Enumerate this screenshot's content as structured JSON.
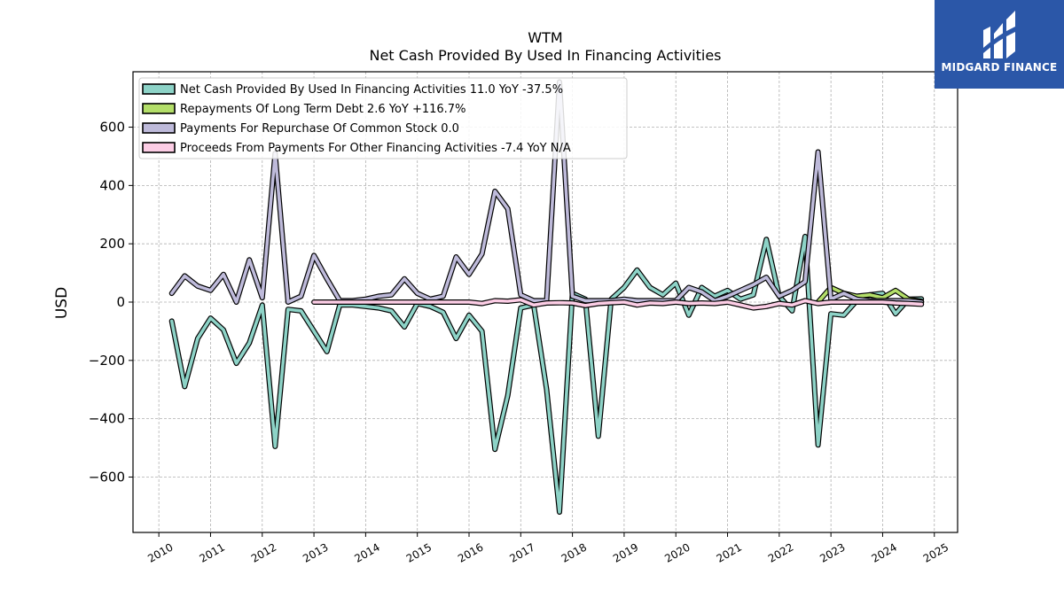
{
  "brand": {
    "name": "MIDGARD FINANCE",
    "logo_color": "#2b57a8",
    "icon": "midgard-logo-mark"
  },
  "chart_data": {
    "type": "line",
    "title": "WTM",
    "subtitle": "Net Cash Provided By Used In Financing Activities",
    "xlabel": "",
    "ylabel": "USD",
    "xlim": [
      2009.5,
      2025.45
    ],
    "ylim": [
      -790,
      790
    ],
    "x_ticks": [
      2010,
      2011,
      2012,
      2013,
      2014,
      2015,
      2016,
      2017,
      2018,
      2019,
      2020,
      2021,
      2022,
      2023,
      2024,
      2025
    ],
    "y_ticks": [
      -600,
      -400,
      -200,
      0,
      200,
      400,
      600
    ],
    "y_tick_labels": [
      "−600",
      "−400",
      "−200",
      "0",
      "200",
      "400",
      "600"
    ],
    "grid": true,
    "legend_position": "top-left",
    "series": [
      {
        "name": "Net Cash Provided By Used In Financing Activities",
        "legend_label": "Net Cash Provided By Used In Financing Activities  11.0 YoY -37.5%",
        "color": "#8dd3c7",
        "points": [
          [
            2010.25,
            -65
          ],
          [
            2010.5,
            -290
          ],
          [
            2010.75,
            -125
          ],
          [
            2011.0,
            -55
          ],
          [
            2011.25,
            -95
          ],
          [
            2011.5,
            -210
          ],
          [
            2011.75,
            -140
          ],
          [
            2012.0,
            -10
          ],
          [
            2012.25,
            -495
          ],
          [
            2012.5,
            -25
          ],
          [
            2012.75,
            -30
          ],
          [
            2013.0,
            -100
          ],
          [
            2013.25,
            -170
          ],
          [
            2013.5,
            -10
          ],
          [
            2013.75,
            -10
          ],
          [
            2014.0,
            -15
          ],
          [
            2014.25,
            -20
          ],
          [
            2014.5,
            -30
          ],
          [
            2014.75,
            -85
          ],
          [
            2015.0,
            -5
          ],
          [
            2015.25,
            -15
          ],
          [
            2015.5,
            -35
          ],
          [
            2015.75,
            -125
          ],
          [
            2016.0,
            -45
          ],
          [
            2016.25,
            -100
          ],
          [
            2016.5,
            -505
          ],
          [
            2016.75,
            -320
          ],
          [
            2017.0,
            -20
          ],
          [
            2017.25,
            -10
          ],
          [
            2017.5,
            -300
          ],
          [
            2017.75,
            -720
          ],
          [
            2018.0,
            30
          ],
          [
            2018.25,
            10
          ],
          [
            2018.5,
            -460
          ],
          [
            2018.75,
            10
          ],
          [
            2019.0,
            50
          ],
          [
            2019.25,
            110
          ],
          [
            2019.5,
            50
          ],
          [
            2019.75,
            25
          ],
          [
            2020.0,
            65
          ],
          [
            2020.25,
            -45
          ],
          [
            2020.5,
            50
          ],
          [
            2020.75,
            20
          ],
          [
            2021.0,
            40
          ],
          [
            2021.25,
            10
          ],
          [
            2021.5,
            25
          ],
          [
            2021.75,
            215
          ],
          [
            2022.0,
            20
          ],
          [
            2022.25,
            -30
          ],
          [
            2022.5,
            225
          ],
          [
            2022.75,
            -490
          ],
          [
            2023.0,
            -40
          ],
          [
            2023.25,
            -45
          ],
          [
            2023.5,
            5
          ],
          [
            2023.75,
            25
          ],
          [
            2024.0,
            30
          ],
          [
            2024.25,
            -40
          ],
          [
            2024.5,
            10
          ],
          [
            2024.75,
            11
          ]
        ]
      },
      {
        "name": "Repayments Of Long Term Debt",
        "legend_label": "Repayments Of Long Term Debt  2.6 YoY +116.7%",
        "color": "#b3de69",
        "points": [
          [
            2022.75,
            0
          ],
          [
            2023.0,
            50
          ],
          [
            2023.25,
            30
          ],
          [
            2023.5,
            20
          ],
          [
            2023.75,
            25
          ],
          [
            2024.0,
            15
          ],
          [
            2024.25,
            40
          ],
          [
            2024.5,
            10
          ],
          [
            2024.75,
            2.6
          ]
        ]
      },
      {
        "name": "Payments For Repurchase Of Common Stock",
        "legend_label": "Payments For Repurchase Of Common Stock  0.0",
        "color": "#bebada",
        "points": [
          [
            2010.25,
            30
          ],
          [
            2010.5,
            90
          ],
          [
            2010.75,
            55
          ],
          [
            2011.0,
            40
          ],
          [
            2011.25,
            95
          ],
          [
            2011.5,
            0
          ],
          [
            2011.75,
            145
          ],
          [
            2012.0,
            15
          ],
          [
            2012.25,
            510
          ],
          [
            2012.5,
            0
          ],
          [
            2012.75,
            20
          ],
          [
            2013.0,
            160
          ],
          [
            2013.25,
            80
          ],
          [
            2013.5,
            5
          ],
          [
            2013.75,
            5
          ],
          [
            2014.0,
            10
          ],
          [
            2014.25,
            20
          ],
          [
            2014.5,
            25
          ],
          [
            2014.75,
            80
          ],
          [
            2015.0,
            30
          ],
          [
            2015.25,
            10
          ],
          [
            2015.5,
            20
          ],
          [
            2015.75,
            155
          ],
          [
            2016.0,
            95
          ],
          [
            2016.25,
            165
          ],
          [
            2016.5,
            380
          ],
          [
            2016.75,
            320
          ],
          [
            2017.0,
            25
          ],
          [
            2017.25,
            5
          ],
          [
            2017.5,
            5
          ],
          [
            2017.75,
            755
          ],
          [
            2018.0,
            20
          ],
          [
            2018.25,
            5
          ],
          [
            2018.5,
            5
          ],
          [
            2018.75,
            5
          ],
          [
            2019.0,
            10
          ],
          [
            2019.25,
            5
          ],
          [
            2019.5,
            5
          ],
          [
            2019.75,
            5
          ],
          [
            2020.0,
            5
          ],
          [
            2020.25,
            50
          ],
          [
            2020.5,
            35
          ],
          [
            2020.75,
            5
          ],
          [
            2021.0,
            20
          ],
          [
            2021.25,
            40
          ],
          [
            2021.5,
            60
          ],
          [
            2021.75,
            85
          ],
          [
            2022.0,
            20
          ],
          [
            2022.25,
            40
          ],
          [
            2022.5,
            70
          ],
          [
            2022.75,
            515
          ],
          [
            2023.0,
            10
          ],
          [
            2023.25,
            30
          ],
          [
            2023.5,
            10
          ],
          [
            2023.75,
            5
          ],
          [
            2024.0,
            5
          ],
          [
            2024.25,
            5
          ],
          [
            2024.5,
            5
          ],
          [
            2024.75,
            0
          ]
        ]
      },
      {
        "name": "Proceeds From Payments For Other Financing Activities",
        "legend_label": "Proceeds From Payments For Other Financing Activities  -7.4 YoY N/A",
        "color": "#fccde5",
        "points": [
          [
            2013.0,
            0
          ],
          [
            2013.25,
            0
          ],
          [
            2013.5,
            0
          ],
          [
            2013.75,
            0
          ],
          [
            2014.0,
            0
          ],
          [
            2014.25,
            0
          ],
          [
            2014.5,
            0
          ],
          [
            2014.75,
            0
          ],
          [
            2015.0,
            0
          ],
          [
            2015.25,
            0
          ],
          [
            2015.5,
            0
          ],
          [
            2015.75,
            0
          ],
          [
            2016.0,
            0
          ],
          [
            2016.25,
            -5
          ],
          [
            2016.5,
            5
          ],
          [
            2016.75,
            3
          ],
          [
            2017.0,
            8
          ],
          [
            2017.25,
            -10
          ],
          [
            2017.5,
            -3
          ],
          [
            2017.75,
            -2
          ],
          [
            2018.0,
            -3
          ],
          [
            2018.25,
            -12
          ],
          [
            2018.5,
            -5
          ],
          [
            2018.75,
            -2
          ],
          [
            2019.0,
            0
          ],
          [
            2019.25,
            -10
          ],
          [
            2019.5,
            -3
          ],
          [
            2019.75,
            -5
          ],
          [
            2020.0,
            0
          ],
          [
            2020.25,
            -5
          ],
          [
            2020.5,
            -3
          ],
          [
            2020.75,
            -5
          ],
          [
            2021.0,
            0
          ],
          [
            2021.25,
            -10
          ],
          [
            2021.5,
            -20
          ],
          [
            2021.75,
            -15
          ],
          [
            2022.0,
            -5
          ],
          [
            2022.25,
            -10
          ],
          [
            2022.5,
            5
          ],
          [
            2022.75,
            -5
          ],
          [
            2023.0,
            0
          ],
          [
            2023.25,
            0
          ],
          [
            2023.5,
            0
          ],
          [
            2023.75,
            0
          ],
          [
            2024.0,
            0
          ],
          [
            2024.25,
            -3
          ],
          [
            2024.5,
            -5
          ],
          [
            2024.75,
            -7.4
          ]
        ]
      }
    ]
  }
}
